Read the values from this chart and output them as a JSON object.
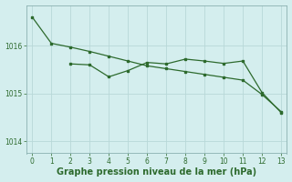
{
  "line1_x": [
    0,
    1,
    2,
    3,
    4,
    5,
    6,
    7,
    8,
    9,
    10,
    11,
    12,
    13
  ],
  "line1_y": [
    1016.6,
    1016.05,
    1015.97,
    1015.88,
    1015.78,
    1015.68,
    1015.58,
    1015.52,
    1015.46,
    1015.4,
    1015.34,
    1015.28,
    1014.98,
    1014.62
  ],
  "line2_x": [
    2,
    3,
    4,
    5,
    6,
    7,
    8,
    9,
    10,
    11,
    12,
    13
  ],
  "line2_y": [
    1015.62,
    1015.6,
    1015.35,
    1015.48,
    1015.65,
    1015.62,
    1015.72,
    1015.68,
    1015.63,
    1015.68,
    1015.02,
    1014.6
  ],
  "line_color": "#2d6a2d",
  "bg_color": "#d4eeee",
  "grid_color": "#b8d8d8",
  "xlabel": "Graphe pression niveau de la mer (hPa)",
  "xlabel_fontsize": 7,
  "xlim": [
    -0.3,
    13.3
  ],
  "ylim": [
    1013.75,
    1016.85
  ],
  "yticks": [
    1014,
    1015,
    1016
  ],
  "xticks": [
    0,
    1,
    2,
    3,
    4,
    5,
    6,
    7,
    8,
    9,
    10,
    11,
    12,
    13
  ]
}
